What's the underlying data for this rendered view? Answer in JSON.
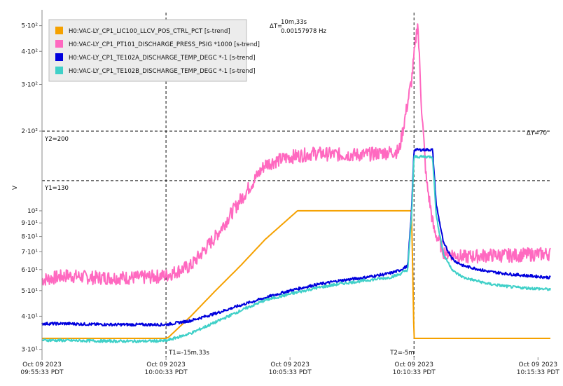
{
  "chart_data": {
    "type": "line",
    "ylabel": "V",
    "y_scale": "log",
    "ylim": [
      28,
      560
    ],
    "x_ticks": [
      {
        "line1": "Oct 09 2023",
        "line2": "09:55:33 PDT"
      },
      {
        "line1": "Oct 09 2023",
        "line2": "10:00:33 PDT"
      },
      {
        "line1": "Oct 09 2023",
        "line2": "10:05:33 PDT"
      },
      {
        "line1": "Oct 09 2023",
        "line2": "10:10:33 PDT"
      },
      {
        "line1": "Oct 09 2023",
        "line2": "10:15:33 PDT"
      }
    ],
    "y_ticks": [
      {
        "value": 30,
        "label": "3·10¹"
      },
      {
        "value": 40,
        "label": "4·10¹"
      },
      {
        "value": 50,
        "label": "5·10¹"
      },
      {
        "value": 60,
        "label": "6·10¹"
      },
      {
        "value": 70,
        "label": "7·10¹"
      },
      {
        "value": 80,
        "label": "8·10¹"
      },
      {
        "value": 90,
        "label": "9·10¹"
      },
      {
        "value": 100,
        "label": "10²"
      },
      {
        "value": 200,
        "label": "2·10²"
      },
      {
        "value": 300,
        "label": "3·10²"
      },
      {
        "value": 400,
        "label": "4·10²"
      },
      {
        "value": 500,
        "label": "5·10²"
      }
    ],
    "series": [
      {
        "name": "H0:VAC-LY_CP1_LIC100_LLCV_POS_CTRL_PCT [s-trend]",
        "color": "#f5a100",
        "x": [
          -5,
          0,
          0.1,
          1,
          2,
          3,
          4,
          5.3,
          9.5,
          9.6,
          9.85,
          9.9,
          10.0,
          15.5
        ],
        "y": [
          33,
          33,
          33.3,
          40,
          50,
          62,
          78,
          100,
          100,
          100,
          100,
          100,
          33,
          33
        ]
      },
      {
        "name": "H0:VAC-LY_CP1_PT101_DISCHARGE_PRESS_PSIG *1000 [s-trend]",
        "color": "#ff69c0",
        "x": [
          -5,
          -4,
          -3,
          -2,
          -1,
          0,
          1,
          2,
          3,
          4,
          5,
          6,
          7,
          8,
          9.4,
          9.9,
          10.15,
          10.3,
          10.5,
          10.8,
          11.2,
          12,
          13,
          14,
          15.5
        ],
        "y": [
          55,
          57,
          56,
          56,
          56,
          57,
          62,
          80,
          110,
          150,
          160,
          165,
          163,
          163,
          168,
          310,
          520,
          250,
          130,
          85,
          70,
          67,
          68,
          68,
          69
        ]
      },
      {
        "name": "H0:VAC-LY_CP1_TE102A_DISCHARGE_TEMP_DEGC *-1 [s-trend]",
        "color": "#0000dd",
        "x": [
          -5,
          -4,
          -3,
          -2,
          -1,
          0,
          1,
          2,
          3,
          4,
          5,
          6,
          7,
          8,
          9,
          9.4,
          9.75,
          9.9,
          10.0,
          10.75,
          10.9,
          11.2,
          11.6,
          12,
          13,
          14,
          15.5
        ],
        "y": [
          37.5,
          37.5,
          37.3,
          37.2,
          37.2,
          37.2,
          38.5,
          41,
          44,
          47,
          50,
          52.5,
          54.5,
          56,
          58,
          59.5,
          62,
          100,
          170,
          170,
          105,
          75,
          65,
          62,
          59,
          57.5,
          56
        ]
      },
      {
        "name": "H0:VAC-LY_CP1_TE102B_DISCHARGE_TEMP_DEGC *-1 [s-trend]",
        "color": "#40d0c8",
        "x": [
          -5,
          -4,
          -3,
          -2,
          -1,
          0,
          1,
          2,
          3,
          4,
          5,
          6,
          7,
          8,
          9,
          9.4,
          9.75,
          9.9,
          10.0,
          10.75,
          10.9,
          11.2,
          11.6,
          12,
          13,
          14,
          15.5
        ],
        "y": [
          32.5,
          32.4,
          32.3,
          32.2,
          32.2,
          32.3,
          34.5,
          38,
          42,
          46,
          48.5,
          51,
          53,
          54.5,
          56,
          57.5,
          60,
          95,
          160,
          160,
          95,
          68,
          59,
          56,
          53,
          51.5,
          50.5
        ]
      }
    ],
    "cursors": {
      "t1_label": "T1=-15m,33s",
      "t2_label": "T2=-5m",
      "dt_prefix": "ΔT=",
      "dt_line1": "10m,33s",
      "dt_line2": "0.00157978 Hz",
      "y1_label": "Y1=130",
      "y2_label": "Y2=200",
      "dy_label": "ΔY=70",
      "t1_x": 0,
      "t2_x": 10.0,
      "y1_value": 130,
      "y2_value": 200
    },
    "xlim": [
      -5,
      15.5
    ],
    "legend_position": "top-left",
    "grid": false
  }
}
